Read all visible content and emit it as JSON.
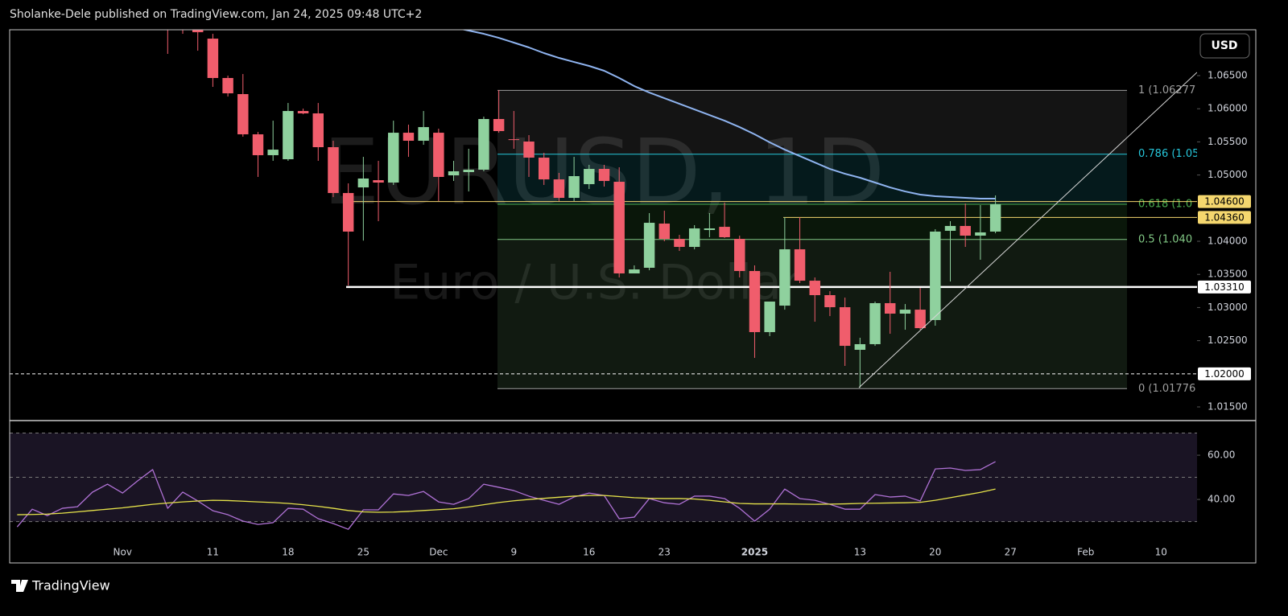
{
  "header": "Sholanke-Dele published on TradingView.com, Jan 24, 2025 09:48 UTC+2",
  "currency_button": "USD",
  "footer": "TradingView",
  "chart_data": [
    {
      "type": "candlestick",
      "title": "EURUSD, 1D",
      "subtitle": "Euro / U.S. Dollar",
      "up_color": "#8fd19e",
      "down_color": "#f05d6c",
      "categories": [
        null,
        null,
        null,
        null,
        null,
        null,
        null,
        "Nov",
        null,
        null,
        null,
        null,
        null,
        "11",
        null,
        null,
        null,
        null,
        "18",
        null,
        null,
        null,
        null,
        "25",
        null,
        null,
        null,
        null,
        "Dec",
        null,
        null,
        null,
        null,
        "9",
        null,
        null,
        null,
        null,
        "16",
        null,
        null,
        null,
        null,
        "23",
        null,
        null,
        null,
        null,
        null,
        "2025",
        null,
        null,
        null,
        null,
        null,
        null,
        "13",
        null,
        null,
        null,
        null,
        "20",
        null,
        null,
        null,
        null,
        "27",
        null,
        null,
        null,
        null,
        "Feb",
        null,
        null,
        null,
        null,
        "10",
        null,
        null
      ],
      "open": [
        null,
        null,
        null,
        null,
        null,
        null,
        null,
        null,
        null,
        null,
        1.076,
        1.0745,
        1.07192,
        1.07058,
        1.06464,
        1.06221,
        1.05614,
        1.05299,
        1.05238,
        1.05966,
        1.0593,
        1.0542,
        1.04728,
        1.04813,
        1.04922,
        1.04886,
        1.05638,
        1.05517,
        1.05638,
        1.04995,
        1.05044,
        1.0508,
        1.05845,
        1.0554,
        1.05505,
        1.05262,
        1.04934,
        1.04655,
        1.04862,
        1.05092,
        1.04898,
        1.03515,
        1.036,
        1.04267,
        1.04036,
        1.03915,
        1.0417,
        1.04218,
        1.04036,
        1.03551,
        1.02629,
        1.03029,
        1.03879,
        1.03405,
        1.03187,
        1.03005,
        1.02362,
        1.02447,
        1.03066,
        1.02908,
        1.02968,
        1.02811,
        1.04158,
        1.04231,
        1.04085,
        1.04146,
        null,
        null,
        null,
        null,
        null,
        null,
        null,
        null,
        null,
        null,
        null,
        null,
        null
      ],
      "high": [
        null,
        null,
        null,
        null,
        null,
        null,
        null,
        null,
        null,
        null,
        1.077,
        1.075,
        1.0735,
        1.07131,
        1.065,
        1.06524,
        1.0565,
        1.0582,
        1.06087,
        1.06002,
        1.06087,
        1.05517,
        1.04874,
        1.05274,
        1.05214,
        1.0582,
        1.0576,
        1.05966,
        1.05699,
        1.05214,
        1.05396,
        1.05881,
        1.06282,
        1.05966,
        1.05602,
        1.05335,
        1.05032,
        1.05274,
        1.05153,
        1.05153,
        1.05116,
        1.03636,
        1.04425,
        1.04461,
        1.04097,
        1.04243,
        1.04425,
        1.04583,
        1.04085,
        1.03636,
        1.0309,
        1.04364,
        1.04364,
        1.03454,
        1.03247,
        1.0315,
        1.02544,
        1.0309,
        1.03539,
        1.03053,
        1.03296,
        1.04182,
        1.04303,
        1.0457,
        1.04546,
        1.04692,
        null,
        null,
        null,
        null,
        null,
        null,
        null,
        null,
        null,
        null,
        null,
        null,
        null
      ],
      "low": [
        null,
        null,
        null,
        null,
        null,
        null,
        null,
        null,
        null,
        null,
        1.06828,
        1.07131,
        1.06876,
        1.0633,
        1.06184,
        1.05578,
        1.04971,
        1.05214,
        1.05214,
        1.05917,
        1.05214,
        1.04667,
        1.03333,
        1.0401,
        1.04303,
        1.0485,
        1.05274,
        1.05456,
        1.04607,
        1.0491,
        1.04752,
        1.05056,
        1.05638,
        1.05396,
        1.04971,
        1.0485,
        1.04607,
        1.04607,
        1.04789,
        1.04825,
        1.03454,
        1.03515,
        1.03563,
        1.04,
        1.03854,
        1.03879,
        1.04061,
        1.04049,
        1.03454,
        1.0224,
        1.02568,
        1.02968,
        1.03369,
        1.02786,
        1.02871,
        1.02119,
        1.01791,
        1.02422,
        1.02604,
        1.02665,
        1.02665,
        1.02726,
        1.03393,
        1.03915,
        1.03721,
        1.04121,
        null,
        null,
        null,
        null,
        null,
        null,
        null,
        null,
        null,
        null,
        null,
        null,
        null
      ],
      "close": [
        null,
        null,
        null,
        null,
        null,
        null,
        null,
        null,
        null,
        null,
        1.0725,
        1.073,
        1.07155,
        1.06464,
        1.06233,
        1.05614,
        1.05299,
        1.05383,
        1.05966,
        1.0593,
        1.0542,
        1.04728,
        1.04146,
        1.04947,
        1.04886,
        1.05638,
        1.05517,
        1.05723,
        1.04971,
        1.05056,
        1.0508,
        1.05845,
        1.05663,
        1.05529,
        1.05262,
        1.04934,
        1.04655,
        1.04983,
        1.05092,
        1.0491,
        1.03515,
        1.03575,
        1.04279,
        1.04036,
        1.03915,
        1.04194,
        1.04194,
        1.04061,
        1.03551,
        1.02629,
        1.0309,
        1.03879,
        1.03405,
        1.03187,
        1.03005,
        1.02422,
        1.02447,
        1.03066,
        1.02908,
        1.02968,
        1.02689,
        1.04146,
        1.04231,
        1.04085,
        1.04134,
        1.04558,
        null,
        null,
        null,
        null,
        null,
        null,
        null,
        null,
        null,
        null,
        null,
        null,
        null
      ],
      "lines": [
        {
          "color": "#8fb4f0",
          "values": [
            null,
            null,
            null,
            null,
            null,
            null,
            null,
            null,
            null,
            null,
            null,
            null,
            null,
            null,
            null,
            null,
            null,
            null,
            null,
            null,
            null,
            null,
            null,
            null,
            null,
            null,
            null,
            null,
            null,
            1.07228,
            1.0718,
            1.07131,
            1.0707,
            1.06998,
            1.06925,
            1.0684,
            1.06767,
            1.06706,
            1.06646,
            1.06573,
            1.06464,
            1.06342,
            1.06245,
            1.0616,
            1.06075,
            1.0599,
            1.05905,
            1.0582,
            1.05723,
            1.05614,
            1.05493,
            1.05383,
            1.05286,
            1.05189,
            1.05092,
            1.05019,
            1.04959,
            1.04886,
            1.04813,
            1.04752,
            1.04704,
            1.0468,
            1.04667,
            1.04655,
            1.04643,
            1.04643,
            null,
            null,
            null,
            null,
            null,
            null,
            null,
            null,
            null,
            null,
            null,
            null,
            null
          ]
        }
      ],
      "ylim": [
        1.01306,
        1.07192
      ],
      "yticks": [
        {
          "value": 1.015,
          "label": "1.01500"
        },
        {
          "value": 1.025,
          "label": "1.02500"
        },
        {
          "value": 1.03,
          "label": "1.03000"
        },
        {
          "value": 1.035,
          "label": "1.03500"
        },
        {
          "value": 1.04,
          "label": "1.04000"
        },
        {
          "value": 1.05,
          "label": "1.05000"
        },
        {
          "value": 1.055,
          "label": "1.05500"
        },
        {
          "value": 1.06,
          "label": "1.06000"
        },
        {
          "value": 1.065,
          "label": "1.06500"
        }
      ],
      "price_lines": [
        {
          "value": 1.046,
          "label": "1.04600",
          "color": "#f5d76e",
          "style": "solid"
        },
        {
          "value": 1.0436,
          "label": "1.04360",
          "color": "#f5d76e",
          "style": "solid"
        },
        {
          "value": 1.0331,
          "label": "1.03310",
          "color": "#ffffff",
          "style": "thick"
        },
        {
          "value": 1.02,
          "label": "1.02000",
          "color": "#ffffff",
          "style": "dashed"
        }
      ],
      "fib_levels": [
        {
          "label": "1 (1.06277",
          "value": 1.06277,
          "color": "#9e9e9e"
        },
        {
          "label": "0.786 (1.05",
          "value": 1.05314,
          "color": "#26c6da"
        },
        {
          "label": "0.618 (1.0",
          "value": 1.04558,
          "color": "#4caf50"
        },
        {
          "label": "0.5 (1.040",
          "value": 1.04027,
          "color": "#81c784"
        },
        {
          "label": "0 (1.01776",
          "value": 1.01776,
          "color": "#9e9e9e"
        }
      ]
    },
    {
      "type": "line",
      "series": [
        {
          "color": "#b072d6",
          "values": [
            27.6,
            35.6,
            32.7,
            36.0,
            36.7,
            43.3,
            46.9,
            42.9,
            48.4,
            53.5,
            36.0,
            43.3,
            39.3,
            34.9,
            33.1,
            30.2,
            28.7,
            29.5,
            36.0,
            35.6,
            31.3,
            29.1,
            26.5,
            35.3,
            35.3,
            42.5,
            41.8,
            43.6,
            38.9,
            37.8,
            40.4,
            46.9,
            45.5,
            44.0,
            41.5,
            39.6,
            37.8,
            41.1,
            42.9,
            41.8,
            31.3,
            32.0,
            40.4,
            38.5,
            37.8,
            41.5,
            41.5,
            40.4,
            36.0,
            30.2,
            35.6,
            44.7,
            40.4,
            39.6,
            37.8,
            35.6,
            35.6,
            42.2,
            41.1,
            41.5,
            39.3,
            53.8,
            54.2,
            53.1,
            53.5,
            57.1,
            null,
            null,
            null,
            null,
            null,
            null,
            null,
            null,
            null,
            null,
            null,
            null,
            null
          ]
        },
        {
          "color": "#e6e34a",
          "values": [
            33.1,
            33.2,
            33.4,
            33.8,
            34.4,
            35.0,
            35.6,
            36.2,
            37.0,
            37.8,
            38.4,
            38.9,
            39.3,
            39.6,
            39.5,
            39.2,
            38.9,
            38.6,
            38.2,
            37.6,
            36.9,
            36.0,
            35.0,
            34.4,
            34.2,
            34.3,
            34.6,
            35.0,
            35.4,
            35.8,
            36.6,
            37.6,
            38.6,
            39.4,
            40.0,
            40.5,
            41.0,
            41.5,
            41.8,
            41.8,
            41.3,
            40.8,
            40.5,
            40.4,
            40.4,
            40.2,
            39.6,
            38.9,
            38.2,
            38.0,
            38.0,
            38.0,
            37.9,
            37.8,
            37.9,
            38.0,
            38.2,
            38.3,
            38.4,
            38.5,
            38.7,
            39.6,
            40.8,
            42.0,
            43.2,
            44.7,
            null,
            null,
            null,
            null,
            null,
            null,
            null,
            null,
            null,
            null,
            null,
            null,
            null
          ]
        }
      ],
      "ylim": [
        11.3,
        74.2
      ],
      "yticks": [
        {
          "value": 40,
          "label": "40.00"
        },
        {
          "value": 60,
          "label": "60.00"
        }
      ],
      "levels": [
        70,
        50,
        30
      ]
    }
  ]
}
